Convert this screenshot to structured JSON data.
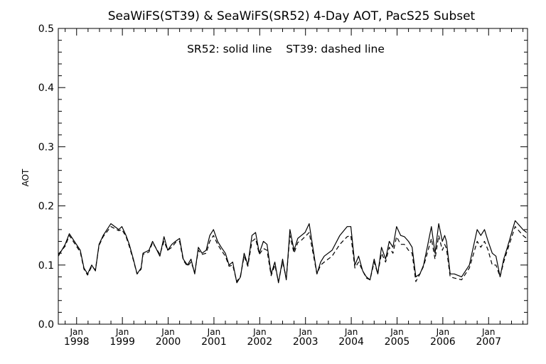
{
  "chart_data": {
    "type": "line",
    "title": "SeaWiFS(ST39) & SeaWiFS(SR52) 4-Day AOT, PacS25 Subset",
    "subtitle": "SR52: solid line    ST39: dashed line",
    "xlabel": "",
    "ylabel": "AOT",
    "ylim": [
      0.0,
      0.5
    ],
    "xlim": [
      1997.6,
      2007.85
    ],
    "yticks": [
      "0.0",
      "0.1",
      "0.2",
      "0.3",
      "0.4",
      "0.5"
    ],
    "xticks": [
      {
        "x": 1998,
        "month": "Jan",
        "year": "1998"
      },
      {
        "x": 1999,
        "month": "Jan",
        "year": "1999"
      },
      {
        "x": 2000,
        "month": "Jan",
        "year": "2000"
      },
      {
        "x": 2001,
        "month": "Jan",
        "year": "2001"
      },
      {
        "x": 2002,
        "month": "Jan",
        "year": "2002"
      },
      {
        "x": 2003,
        "month": "Jan",
        "year": "2003"
      },
      {
        "x": 2004,
        "month": "Jan",
        "year": "2004"
      },
      {
        "x": 2005,
        "month": "Jan",
        "year": "2005"
      },
      {
        "x": 2006,
        "month": "Jan",
        "year": "2006"
      },
      {
        "x": 2007,
        "month": "Jan",
        "year": "2007"
      }
    ],
    "grid": false,
    "series": [
      {
        "name": "SR52",
        "style": "solid",
        "color": "#000000",
        "x": [
          1997.6,
          1997.75,
          1997.84,
          1998.08,
          1998.16,
          1998.24,
          1998.33,
          1998.41,
          1998.49,
          1998.58,
          1998.75,
          1998.92,
          1998.99,
          1999.08,
          1999.15,
          1999.24,
          1999.32,
          1999.41,
          1999.45,
          1999.58,
          1999.66,
          1999.82,
          1999.91,
          1999.99,
          2000.08,
          2000.16,
          2000.25,
          2000.33,
          2000.42,
          2000.5,
          2000.58,
          2000.66,
          2000.74,
          2000.83,
          2000.91,
          2000.99,
          2001.08,
          2001.16,
          2001.25,
          2001.33,
          2001.41,
          2001.5,
          2001.58,
          2001.66,
          2001.74,
          2001.83,
          2001.91,
          2001.99,
          2002.08,
          2002.16,
          2002.25,
          2002.33,
          2002.41,
          2002.5,
          2002.58,
          2002.66,
          2002.75,
          2002.83,
          2002.91,
          2002.99,
          2003.08,
          2003.25,
          2003.33,
          2003.41,
          2003.58,
          2003.75,
          2003.91,
          2003.99,
          2004.08,
          2004.16,
          2004.25,
          2004.33,
          2004.41,
          2004.5,
          2004.58,
          2004.66,
          2004.75,
          2004.83,
          2004.91,
          2004.99,
          2005.08,
          2005.16,
          2005.25,
          2005.33,
          2005.41,
          2005.5,
          2005.58,
          2005.66,
          2005.75,
          2005.83,
          2005.91,
          2005.99,
          2006.04,
          2006.08,
          2006.16,
          2006.25,
          2006.41,
          2006.58,
          2006.75,
          2006.83,
          2006.91,
          2006.99,
          2007.08,
          2007.16,
          2007.25,
          2007.33,
          2007.41,
          2007.58,
          2007.75,
          2007.83
        ],
        "values": [
          0.115,
          0.135,
          0.153,
          0.125,
          0.095,
          0.085,
          0.1,
          0.09,
          0.135,
          0.15,
          0.17,
          0.16,
          0.165,
          0.15,
          0.135,
          0.11,
          0.085,
          0.095,
          0.12,
          0.125,
          0.14,
          0.115,
          0.148,
          0.125,
          0.135,
          0.14,
          0.145,
          0.11,
          0.1,
          0.11,
          0.085,
          0.13,
          0.12,
          0.125,
          0.15,
          0.16,
          0.14,
          0.13,
          0.12,
          0.1,
          0.105,
          0.07,
          0.08,
          0.12,
          0.1,
          0.15,
          0.155,
          0.12,
          0.14,
          0.135,
          0.085,
          0.105,
          0.07,
          0.11,
          0.075,
          0.16,
          0.125,
          0.145,
          0.15,
          0.155,
          0.17,
          0.085,
          0.105,
          0.115,
          0.125,
          0.15,
          0.165,
          0.165,
          0.1,
          0.115,
          0.09,
          0.08,
          0.075,
          0.11,
          0.085,
          0.13,
          0.11,
          0.14,
          0.13,
          0.165,
          0.15,
          0.148,
          0.14,
          0.13,
          0.08,
          0.085,
          0.1,
          0.13,
          0.165,
          0.12,
          0.17,
          0.14,
          0.15,
          0.14,
          0.085,
          0.085,
          0.08,
          0.1,
          0.16,
          0.15,
          0.16,
          0.14,
          0.12,
          0.115,
          0.08,
          0.11,
          0.13,
          0.175,
          0.16,
          0.155
        ]
      },
      {
        "name": "ST39",
        "style": "dashed",
        "color": "#000000",
        "x": [
          1997.6,
          1997.75,
          1997.84,
          1998.08,
          1998.16,
          1998.24,
          1998.33,
          1998.41,
          1998.49,
          1998.58,
          1998.75,
          1998.92,
          1998.99,
          1999.08,
          1999.15,
          1999.24,
          1999.32,
          1999.41,
          1999.45,
          1999.58,
          1999.66,
          1999.82,
          1999.91,
          1999.99,
          2000.08,
          2000.16,
          2000.25,
          2000.33,
          2000.42,
          2000.5,
          2000.58,
          2000.66,
          2000.74,
          2000.83,
          2000.91,
          2000.99,
          2001.08,
          2001.16,
          2001.25,
          2001.33,
          2001.41,
          2001.5,
          2001.58,
          2001.66,
          2001.74,
          2001.83,
          2001.91,
          2001.99,
          2002.08,
          2002.16,
          2002.25,
          2002.33,
          2002.41,
          2002.5,
          2002.58,
          2002.66,
          2002.75,
          2002.83,
          2002.91,
          2002.99,
          2003.08,
          2003.25,
          2003.33,
          2003.41,
          2003.58,
          2003.75,
          2003.91,
          2003.99,
          2004.08,
          2004.16,
          2004.25,
          2004.33,
          2004.41,
          2004.5,
          2004.58,
          2004.66,
          2004.75,
          2004.83,
          2004.91,
          2004.99,
          2005.08,
          2005.16,
          2005.25,
          2005.33,
          2005.41,
          2005.5,
          2005.58,
          2005.66,
          2005.75,
          2005.83,
          2005.91,
          2005.99,
          2006.04,
          2006.08,
          2006.16,
          2006.25,
          2006.41,
          2006.58,
          2006.75,
          2006.83,
          2006.91,
          2006.99,
          2007.08,
          2007.16,
          2007.25,
          2007.33,
          2007.41,
          2007.58,
          2007.75,
          2007.83
        ],
        "values": [
          0.118,
          0.132,
          0.15,
          0.122,
          0.093,
          0.083,
          0.098,
          0.092,
          0.133,
          0.148,
          0.165,
          0.158,
          0.16,
          0.148,
          0.132,
          0.108,
          0.085,
          0.093,
          0.118,
          0.122,
          0.138,
          0.118,
          0.14,
          0.125,
          0.13,
          0.138,
          0.14,
          0.108,
          0.098,
          0.105,
          0.088,
          0.125,
          0.118,
          0.12,
          0.14,
          0.15,
          0.135,
          0.125,
          0.115,
          0.098,
          0.1,
          0.072,
          0.082,
          0.115,
          0.098,
          0.14,
          0.145,
          0.118,
          0.128,
          0.125,
          0.082,
          0.1,
          0.072,
          0.105,
          0.078,
          0.15,
          0.12,
          0.138,
          0.142,
          0.148,
          0.155,
          0.085,
          0.1,
          0.105,
          0.115,
          0.135,
          0.148,
          0.15,
          0.095,
          0.105,
          0.09,
          0.078,
          0.075,
          0.105,
          0.085,
          0.12,
          0.105,
          0.13,
          0.12,
          0.148,
          0.135,
          0.135,
          0.125,
          0.12,
          0.072,
          0.085,
          0.098,
          0.12,
          0.145,
          0.11,
          0.15,
          0.125,
          0.135,
          0.128,
          0.08,
          0.078,
          0.075,
          0.095,
          0.14,
          0.13,
          0.14,
          0.125,
          0.1,
          0.1,
          0.08,
          0.105,
          0.125,
          0.165,
          0.15,
          0.145
        ]
      }
    ]
  }
}
